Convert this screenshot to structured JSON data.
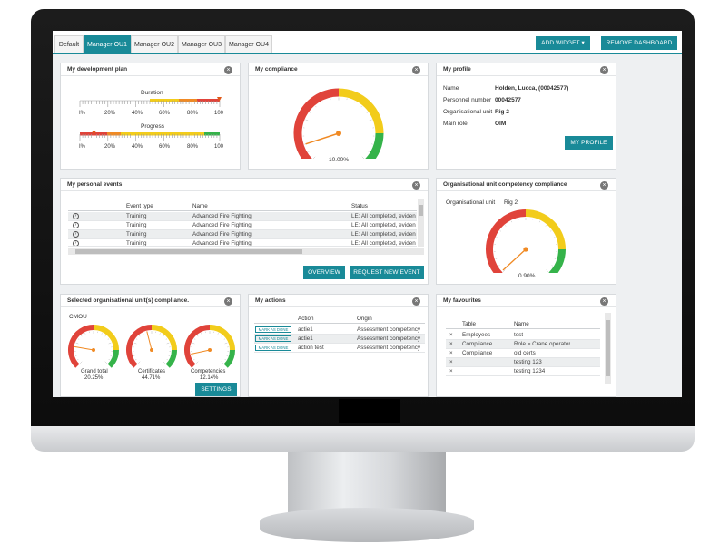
{
  "tabs": [
    "Default",
    "Manager OU1",
    "Manager OU2",
    "Manager OU3",
    "Manager OU4"
  ],
  "active_tab": 1,
  "header": {
    "add_widget_label": "ADD WIDGET",
    "remove_dashboard_label": "REMOVE DASHBOARD"
  },
  "colors": {
    "accent": "#198a98",
    "red": "#e0433a",
    "orange": "#f08a24",
    "yellow": "#f2cc1b",
    "green": "#35b34a"
  },
  "dev_plan": {
    "title": "My development plan",
    "duration_label": "Duration",
    "progress_label": "Progress",
    "duration_ticks": [
      "I%",
      "20%",
      "40%",
      "60%",
      "80%",
      "100"
    ],
    "progress_ticks": [
      "I%",
      "20%",
      "40%",
      "60%",
      "80%",
      "100"
    ]
  },
  "compliance": {
    "title": "My compliance",
    "value_label": "10.00%",
    "value": 10.0
  },
  "profile": {
    "title": "My profile",
    "fields": [
      {
        "label": "Name",
        "value": "Holden, Lucca, (00042577)"
      },
      {
        "label": "Personnel number",
        "value": "00042577"
      },
      {
        "label": "Organisational unit",
        "value": "Rig 2"
      },
      {
        "label": "Main role",
        "value": "OIM"
      }
    ],
    "button_label": "MY PROFILE"
  },
  "events": {
    "title": "My personal events",
    "columns": [
      "Event type",
      "Name",
      "Status"
    ],
    "rows": [
      {
        "type": "Training",
        "name": "Advanced Fire Fighting",
        "status": "LE: All completed, eviden"
      },
      {
        "type": "Training",
        "name": "Advanced Fire Fighting",
        "status": "LE: All completed, eviden"
      },
      {
        "type": "Training",
        "name": "Advanced Fire Fighting",
        "status": "LE: All completed, eviden"
      },
      {
        "type": "Training",
        "name": "Advanced Fire Fighting",
        "status": "LE: All completed, eviden"
      }
    ],
    "overview_label": "OVERVIEW",
    "request_label": "REQUEST NEW EVENT"
  },
  "ou_compliance": {
    "title": "Organisational unit competency compliance",
    "unit_label": "Organisational unit",
    "unit_value": "Rig 2",
    "value_label": "0.90%",
    "value": 0.9
  },
  "selected_ou": {
    "title": "Selected organisational unit(s) compliance.",
    "unit": "CMOU",
    "gauges": [
      {
        "label": "Grand total",
        "value_label": "20.25%",
        "value": 20.25
      },
      {
        "label": "Certificates",
        "value_label": "44.71%",
        "value": 44.71
      },
      {
        "label": "Competencies",
        "value_label": "12.14%",
        "value": 12.14
      }
    ],
    "settings_label": "SETTINGS"
  },
  "actions": {
    "title": "My actions",
    "columns": [
      "Action",
      "Origin"
    ],
    "mark_label": "MARK AS DONE",
    "rows": [
      {
        "action": "actie1",
        "origin": "Assessment competency"
      },
      {
        "action": "actie1",
        "origin": "Assessment competency"
      },
      {
        "action": "action test",
        "origin": "Assessment competency"
      }
    ]
  },
  "favourites": {
    "title": "My favourites",
    "columns": [
      "Table",
      "Name"
    ],
    "rows": [
      {
        "table": "Employees",
        "name": "test"
      },
      {
        "table": "Compliance",
        "name": "Role = Crane operator"
      },
      {
        "table": "Compliance",
        "name": "old certs"
      },
      {
        "table": "",
        "name": "testing 123"
      },
      {
        "table": "",
        "name": "testing 1234"
      }
    ]
  }
}
